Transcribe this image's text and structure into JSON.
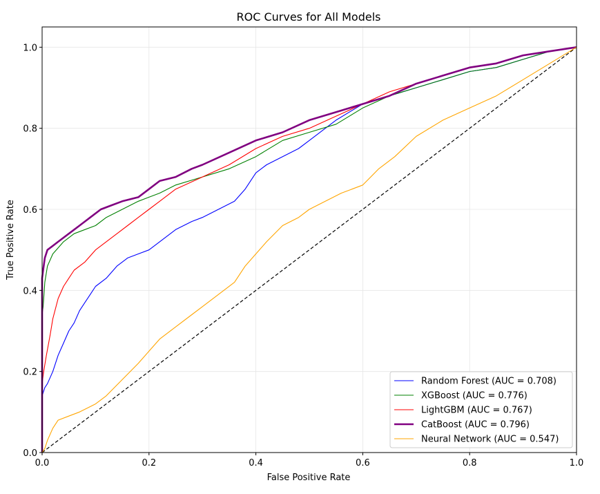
{
  "chart_data": {
    "type": "line",
    "title": "ROC Curves for All Models",
    "xlabel": "False Positive Rate",
    "ylabel": "True Positive Rate",
    "xlim": [
      0.0,
      1.0
    ],
    "ylim": [
      0.0,
      1.05
    ],
    "xticks": [
      0.0,
      0.2,
      0.4,
      0.6,
      0.8,
      1.0
    ],
    "yticks": [
      0.0,
      0.2,
      0.4,
      0.6,
      0.8,
      1.0
    ],
    "xtick_labels": [
      "0.0",
      "0.2",
      "0.4",
      "0.6",
      "0.8",
      "1.0"
    ],
    "ytick_labels": [
      "0.0",
      "0.2",
      "0.4",
      "0.6",
      "0.8",
      "1.0"
    ],
    "grid": true,
    "legend_position": "lower-right",
    "series": [
      {
        "name": "Random Forest (AUC = 0.708)",
        "color": "#0000ff",
        "emphasis": false,
        "x": [
          0.0,
          0.0,
          0.005,
          0.01,
          0.02,
          0.03,
          0.04,
          0.05,
          0.06,
          0.07,
          0.08,
          0.09,
          0.1,
          0.12,
          0.14,
          0.16,
          0.18,
          0.2,
          0.22,
          0.25,
          0.28,
          0.3,
          0.33,
          0.36,
          0.38,
          0.4,
          0.42,
          0.45,
          0.48,
          0.5,
          0.55,
          0.6,
          0.65,
          0.7,
          0.75,
          0.8,
          0.85,
          0.9,
          0.95,
          1.0
        ],
        "y": [
          0.0,
          0.14,
          0.16,
          0.17,
          0.2,
          0.24,
          0.27,
          0.3,
          0.32,
          0.35,
          0.37,
          0.39,
          0.41,
          0.43,
          0.46,
          0.48,
          0.49,
          0.5,
          0.52,
          0.55,
          0.57,
          0.58,
          0.6,
          0.62,
          0.65,
          0.69,
          0.71,
          0.73,
          0.75,
          0.77,
          0.82,
          0.86,
          0.88,
          0.9,
          0.92,
          0.94,
          0.95,
          0.97,
          0.99,
          1.0
        ]
      },
      {
        "name": "XGBoost (AUC = 0.776)",
        "color": "#008000",
        "emphasis": false,
        "x": [
          0.0,
          0.0,
          0.002,
          0.005,
          0.01,
          0.02,
          0.04,
          0.06,
          0.08,
          0.1,
          0.12,
          0.15,
          0.18,
          0.2,
          0.22,
          0.25,
          0.3,
          0.35,
          0.4,
          0.45,
          0.5,
          0.55,
          0.6,
          0.65,
          0.7,
          0.75,
          0.8,
          0.85,
          0.9,
          0.95,
          1.0
        ],
        "y": [
          0.0,
          0.34,
          0.36,
          0.42,
          0.46,
          0.49,
          0.52,
          0.54,
          0.55,
          0.56,
          0.58,
          0.6,
          0.62,
          0.63,
          0.64,
          0.66,
          0.68,
          0.7,
          0.73,
          0.77,
          0.79,
          0.81,
          0.85,
          0.88,
          0.9,
          0.92,
          0.94,
          0.95,
          0.97,
          0.99,
          1.0
        ]
      },
      {
        "name": "LightGBM (AUC = 0.767)",
        "color": "#ff0000",
        "emphasis": false,
        "x": [
          0.0,
          0.0,
          0.003,
          0.008,
          0.015,
          0.02,
          0.03,
          0.04,
          0.05,
          0.06,
          0.08,
          0.1,
          0.12,
          0.14,
          0.16,
          0.18,
          0.2,
          0.22,
          0.25,
          0.3,
          0.35,
          0.4,
          0.45,
          0.5,
          0.55,
          0.6,
          0.65,
          0.7,
          0.75,
          0.8,
          0.85,
          0.9,
          0.95,
          1.0
        ],
        "y": [
          0.0,
          0.17,
          0.2,
          0.24,
          0.29,
          0.33,
          0.38,
          0.41,
          0.43,
          0.45,
          0.47,
          0.5,
          0.52,
          0.54,
          0.56,
          0.58,
          0.6,
          0.62,
          0.65,
          0.68,
          0.71,
          0.75,
          0.78,
          0.8,
          0.83,
          0.86,
          0.89,
          0.91,
          0.93,
          0.95,
          0.96,
          0.98,
          0.99,
          1.0
        ]
      },
      {
        "name": "CatBoost (AUC = 0.796)",
        "color": "#800080",
        "emphasis": true,
        "x": [
          0.0,
          0.0,
          0.002,
          0.005,
          0.01,
          0.02,
          0.03,
          0.05,
          0.07,
          0.09,
          0.11,
          0.13,
          0.15,
          0.18,
          0.2,
          0.22,
          0.25,
          0.28,
          0.3,
          0.35,
          0.4,
          0.45,
          0.5,
          0.55,
          0.6,
          0.65,
          0.7,
          0.75,
          0.8,
          0.85,
          0.9,
          0.95,
          1.0
        ],
        "y": [
          0.0,
          0.43,
          0.45,
          0.48,
          0.5,
          0.51,
          0.52,
          0.54,
          0.56,
          0.58,
          0.6,
          0.61,
          0.62,
          0.63,
          0.65,
          0.67,
          0.68,
          0.7,
          0.71,
          0.74,
          0.77,
          0.79,
          0.82,
          0.84,
          0.86,
          0.88,
          0.91,
          0.93,
          0.95,
          0.96,
          0.98,
          0.99,
          1.0
        ]
      },
      {
        "name": "Neural Network (AUC = 0.547)",
        "color": "#ffa500",
        "emphasis": false,
        "x": [
          0.0,
          0.005,
          0.01,
          0.02,
          0.03,
          0.05,
          0.07,
          0.1,
          0.12,
          0.15,
          0.18,
          0.2,
          0.22,
          0.25,
          0.28,
          0.3,
          0.33,
          0.36,
          0.38,
          0.4,
          0.42,
          0.45,
          0.48,
          0.5,
          0.53,
          0.56,
          0.58,
          0.6,
          0.63,
          0.66,
          0.7,
          0.75,
          0.8,
          0.85,
          0.9,
          0.95,
          1.0
        ],
        "y": [
          0.0,
          0.01,
          0.03,
          0.06,
          0.08,
          0.09,
          0.1,
          0.12,
          0.14,
          0.18,
          0.22,
          0.25,
          0.28,
          0.31,
          0.34,
          0.36,
          0.39,
          0.42,
          0.46,
          0.49,
          0.52,
          0.56,
          0.58,
          0.6,
          0.62,
          0.64,
          0.65,
          0.66,
          0.7,
          0.73,
          0.78,
          0.82,
          0.85,
          0.88,
          0.92,
          0.96,
          1.0
        ]
      }
    ],
    "reference_line": {
      "x": [
        0.0,
        1.0
      ],
      "y": [
        0.0,
        1.0
      ],
      "color": "#000000",
      "style": "dashed"
    }
  }
}
